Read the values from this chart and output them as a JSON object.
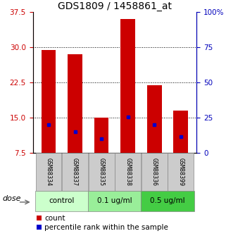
{
  "title": "GDS1809 / 1458861_at",
  "samples": [
    "GSM88334",
    "GSM88337",
    "GSM88335",
    "GSM88338",
    "GSM88336",
    "GSM88399"
  ],
  "bar_tops": [
    29.5,
    28.5,
    15.0,
    36.0,
    22.0,
    16.5
  ],
  "bar_base": 7.5,
  "blue_markers": [
    13.5,
    12.0,
    10.5,
    15.2,
    13.5,
    11.0
  ],
  "bar_color": "#cc0000",
  "blue_color": "#0000cc",
  "ylim_left": [
    7.5,
    37.5
  ],
  "yticks_left": [
    7.5,
    15.0,
    22.5,
    30.0,
    37.5
  ],
  "ylim_right": [
    0,
    100
  ],
  "yticks_right": [
    0,
    25,
    50,
    75,
    100
  ],
  "yticklabels_right": [
    "0",
    "25",
    "50",
    "75",
    "100%"
  ],
  "left_tick_color": "#cc0000",
  "right_tick_color": "#0000bb",
  "groups": [
    {
      "label": "control",
      "indices": [
        0,
        1
      ],
      "color": "#ccffcc"
    },
    {
      "label": "0.1 ug/ml",
      "indices": [
        2,
        3
      ],
      "color": "#99ee99"
    },
    {
      "label": "0.5 ug/ml",
      "indices": [
        4,
        5
      ],
      "color": "#44cc44"
    }
  ],
  "dose_label": "dose",
  "grid_color": "#000000",
  "bar_width": 0.55,
  "title_fontsize": 10,
  "tick_fontsize": 7.5,
  "sample_fontsize": 6,
  "group_fontsize": 7.5,
  "legend_fontsize": 7.5,
  "bg_color": "#ffffff",
  "label_area_color": "#cccccc",
  "plot_bg": "#ffffff"
}
